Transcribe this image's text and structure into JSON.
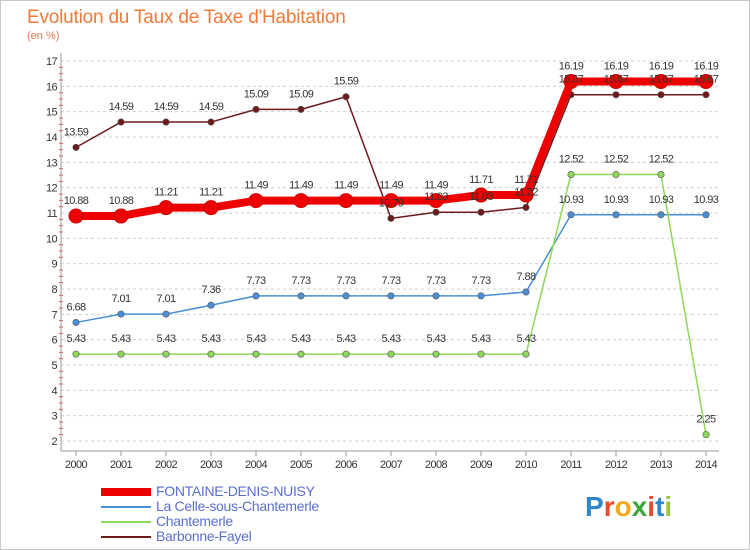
{
  "header": {
    "title": "Evolution du Taux de Taxe d'Habitation",
    "subtitle": "(en %)"
  },
  "logo": {
    "letters": [
      "P",
      "r",
      "o",
      "x",
      "i",
      "t",
      "i"
    ],
    "colors": [
      "#2f86c8",
      "#e84b2a",
      "#f2a81d",
      "#3aa63a",
      "#e84b2a",
      "#2f86c8",
      "#9bc53d"
    ]
  },
  "chart_data": {
    "type": "line",
    "title": "Evolution du Taux de Taxe d'Habitation",
    "subtitle": "(en %)",
    "xlabel": "",
    "ylabel": "",
    "x": [
      "2000",
      "2001",
      "2002",
      "2003",
      "2004",
      "2005",
      "2006",
      "2007",
      "2008",
      "2009",
      "2010",
      "2011",
      "2012",
      "2013",
      "2014"
    ],
    "ylim": [
      2,
      17
    ],
    "yticks": [
      "2",
      "3",
      "4",
      "5",
      "6",
      "7",
      "8",
      "9",
      "10",
      "11",
      "12",
      "13",
      "14",
      "15",
      "16",
      "17"
    ],
    "grid": "horizontal-dashed",
    "legend": "bottom-left",
    "series": [
      {
        "name": "FONTAINE-DENIS-NUISY",
        "color": "#ee0000",
        "emphasis": true,
        "values": [
          10.88,
          10.88,
          11.21,
          11.21,
          11.49,
          11.49,
          11.49,
          11.49,
          11.49,
          11.71,
          11.71,
          16.19,
          16.19,
          16.19,
          16.19
        ],
        "labels": [
          "10.88",
          "10.88",
          "11.21",
          "11.21",
          "11.49",
          "11.49",
          "11.49",
          "11.49",
          "11.49",
          "11.71",
          "11.71",
          "16.19",
          "16.19",
          "16.19",
          "16.19"
        ]
      },
      {
        "name": "La Celle-sous-Chantemerle",
        "color": "#4a8fd4",
        "values": [
          6.68,
          7.01,
          7.01,
          7.36,
          7.73,
          7.73,
          7.73,
          7.73,
          7.73,
          7.73,
          7.88,
          10.93,
          10.93,
          10.93,
          10.93
        ],
        "labels": [
          "6.68",
          "7.01",
          "7.01",
          "7.36",
          "7.73",
          "7.73",
          "7.73",
          "7.73",
          "7.73",
          "7.73",
          "7.88",
          "10.93",
          "10.93",
          "10.93",
          "10.93"
        ]
      },
      {
        "name": "Chantemerle",
        "color": "#8ed85a",
        "values": [
          5.43,
          5.43,
          5.43,
          5.43,
          5.43,
          5.43,
          5.43,
          5.43,
          5.43,
          5.43,
          5.43,
          12.52,
          12.52,
          12.52,
          2.25
        ],
        "labels": [
          "5.43",
          "5.43",
          "5.43",
          "5.43",
          "5.43",
          "5.43",
          "5.43",
          "5.43",
          "5.43",
          "5.43",
          "5.43",
          "12.52",
          "12.52",
          "12.52",
          "2.25"
        ]
      },
      {
        "name": "Barbonne-Fayel",
        "color": "#6e1a1a",
        "values": [
          13.59,
          14.59,
          14.59,
          14.59,
          15.09,
          15.09,
          15.59,
          10.79,
          11.03,
          11.03,
          11.22,
          15.67,
          15.67,
          15.67,
          15.67
        ],
        "labels": [
          "13.59",
          "14.59",
          "14.59",
          "14.59",
          "15.09",
          "15.09",
          "15.59",
          "10.79",
          "11.03",
          "11.03",
          "11.22",
          "15.67",
          "15.67",
          "15.67",
          "15.67"
        ]
      }
    ]
  }
}
